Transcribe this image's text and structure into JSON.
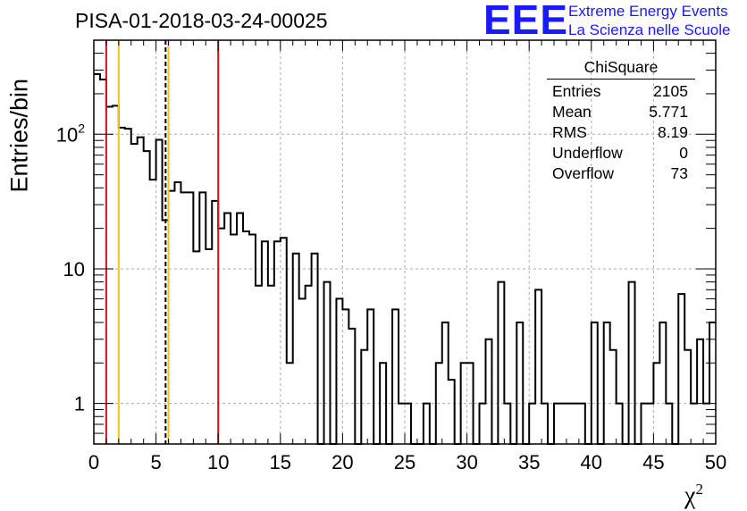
{
  "title": "PISA-01-2018-03-24-00025",
  "logo": {
    "mark": "EEE",
    "line1": "Extreme Energy Events",
    "line2": "La Scienza nelle Scuole",
    "color": "#1a1aff"
  },
  "stats_box": {
    "title": "ChiSquare",
    "rows": [
      {
        "label": "Entries",
        "value": "2105"
      },
      {
        "label": "Mean",
        "value": "5.771"
      },
      {
        "label": "RMS",
        "value": "8.19"
      },
      {
        "label": "Underflow",
        "value": "0"
      },
      {
        "label": "Overflow",
        "value": "73"
      }
    ]
  },
  "chart_data": {
    "type": "histogram",
    "title": "PISA-01-2018-03-24-00025",
    "xlabel": "χ",
    "xlabel_sup": "2",
    "ylabel": "Entries/bin",
    "xlim": [
      0,
      50
    ],
    "ylim": [
      0.5,
      500
    ],
    "yscale": "log",
    "grid": true,
    "bin_width": 0.5,
    "x_ticks": [
      "0",
      "5",
      "10",
      "15",
      "20",
      "25",
      "30",
      "35",
      "40",
      "45",
      "50"
    ],
    "y_ticks": [
      {
        "value": 1,
        "label": "1"
      },
      {
        "value": 10,
        "label": "10"
      },
      {
        "value": 100,
        "label": "10",
        "sup": "2"
      }
    ],
    "bin_contents": [
      280,
      255,
      160,
      163,
      112,
      110,
      85,
      95,
      75,
      46,
      91,
      23,
      38,
      44,
      37,
      37,
      13.5,
      37,
      14,
      32,
      20,
      26,
      18,
      26,
      19,
      18,
      7.5,
      16,
      7.5,
      16,
      17,
      2,
      13,
      6,
      7.5,
      13,
      0,
      8,
      0,
      6,
      5,
      3.6,
      0,
      2.5,
      5,
      0,
      2,
      0,
      5,
      1,
      1,
      0,
      0,
      1,
      0,
      2,
      4,
      1.5,
      0,
      2,
      2,
      0,
      1,
      3,
      0,
      8,
      1,
      0,
      4,
      0,
      1,
      7,
      1,
      0,
      1,
      1,
      1,
      1,
      1,
      0,
      4,
      0,
      4,
      2.5,
      1,
      0,
      8,
      0,
      1,
      1,
      2,
      4,
      1,
      0,
      6.5,
      2.5,
      1,
      3,
      1,
      4
    ],
    "vertical_lines": [
      {
        "x": 1,
        "color": "#dd1111",
        "style": "solid"
      },
      {
        "x": 2,
        "color": "#f2c21e",
        "style": "solid"
      },
      {
        "x": 5.771,
        "color": "#000000",
        "style": "dashed"
      },
      {
        "x": 6,
        "color": "#f2c21e",
        "style": "solid"
      },
      {
        "x": 10,
        "color": "#dd1111",
        "style": "solid"
      }
    ]
  }
}
